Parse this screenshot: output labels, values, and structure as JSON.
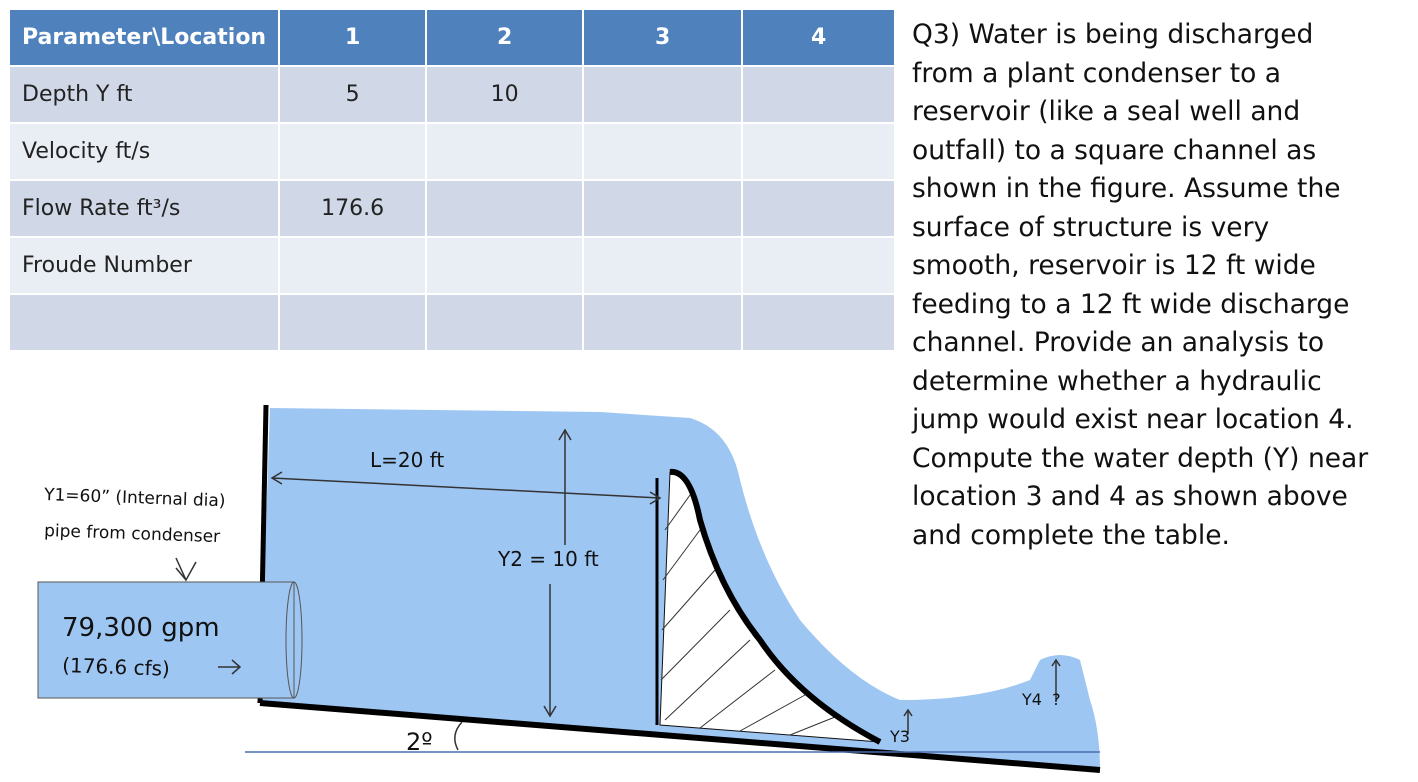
{
  "table": {
    "header": [
      "Parameter\\Location",
      "1",
      "2",
      "3",
      "4"
    ],
    "rows": [
      [
        "Depth Y ft",
        "5",
        "10",
        null,
        null
      ],
      [
        "Velocity  ft/s",
        null,
        null,
        null,
        null
      ],
      [
        "Flow Rate ft³/s",
        "176.6",
        null,
        null,
        null
      ],
      [
        "Froude Number",
        null,
        null,
        null,
        null
      ],
      [
        null,
        null,
        null,
        null,
        null
      ]
    ]
  },
  "question": "Q3) Water is being discharged from a plant condenser to a reservoir (like a seal well and outfall) to a square channel as shown in the figure. Assume the surface of structure is very smooth, reservoir is 12 ft wide feeding to a 12 ft wide discharge channel.  Provide an analysis to determine whether a hydraulic jump would exist near location 4.  Compute the water depth (Y) near location 3 and 4 as shown above and complete the table.",
  "diagram": {
    "length_label": "L=20 ft",
    "pipe_label": "Y1=60” (Internal dia)",
    "pipe_source": "pipe from condenser",
    "flow_gpm": "79,300 gpm",
    "flow_cfs": "(176.6 cfs)",
    "depth2_label": "Y2 = 10 ft",
    "slope_label": "2º",
    "depth3_label": "Y3",
    "depth4_label": "Y4  ?"
  }
}
